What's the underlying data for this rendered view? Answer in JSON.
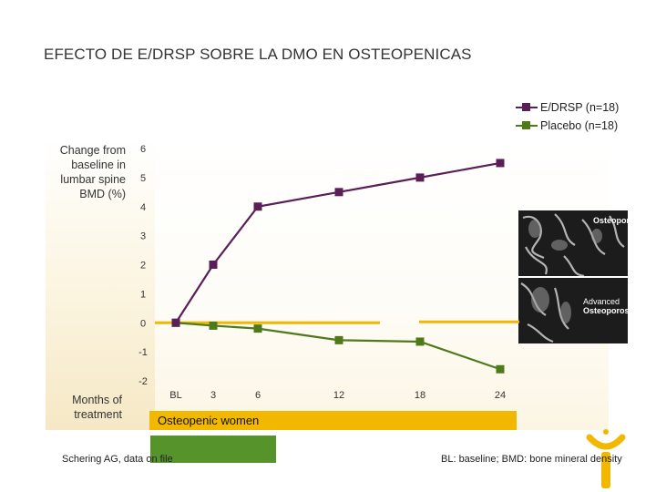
{
  "slide": {
    "title": "EFECTO DE E/DRSP SOBRE LA DMO EN OSTEOPENICAS",
    "banner_text": "Osteopenic women",
    "source": "Schering AG, data on file",
    "footnote": "BL: baseline; BMD: bone mineral density"
  },
  "image_panel": {
    "label_top": "Osteoporosis",
    "label_bottom_1": "Advanced",
    "label_bottom_2": "Osteoporosis"
  },
  "chart_data": {
    "type": "line",
    "ylabel": "Change from baseline in lumbar spine BMD (%)",
    "xlabel": "Months of treatment",
    "categories": [
      "BL",
      "3",
      "6",
      "12",
      "18",
      "24"
    ],
    "x": [
      0,
      3,
      6,
      12,
      18,
      24
    ],
    "ylim": [
      -2,
      6
    ],
    "yticks": [
      "6",
      "5",
      "4",
      "3",
      "2",
      "1",
      "0",
      "-1",
      "-2"
    ],
    "grid": false,
    "legend_position": "top-right",
    "series": [
      {
        "name": "E/DRSP (n=18)",
        "color": "#5a1f57",
        "values": [
          0.0,
          2.0,
          4.0,
          4.5,
          5.0,
          5.5
        ]
      },
      {
        "name": "Placebo (n=18)",
        "color": "#4f7a1a",
        "values": [
          0.0,
          -0.1,
          -0.2,
          -0.6,
          -0.65,
          -1.6
        ]
      }
    ],
    "reference_line": {
      "y": 0,
      "color": "#f2b800"
    }
  }
}
